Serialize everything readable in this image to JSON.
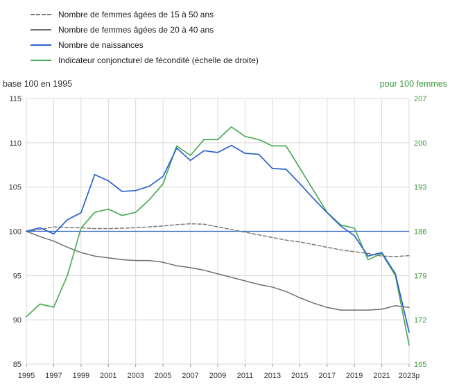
{
  "chart_data": {
    "type": "line",
    "x": [
      1995,
      1996,
      1997,
      1998,
      1999,
      2000,
      2001,
      2002,
      2003,
      2004,
      2005,
      2006,
      2007,
      2008,
      2009,
      2010,
      2011,
      2012,
      2013,
      2014,
      2015,
      2016,
      2017,
      2018,
      2019,
      2020,
      2021,
      2022,
      2023
    ],
    "x_ticks": [
      1995,
      1997,
      1999,
      2001,
      2003,
      2005,
      2007,
      2009,
      2011,
      2013,
      2015,
      2017,
      2019,
      2021,
      2023
    ],
    "x_tick_labels": [
      "1995",
      "1997",
      "1999",
      "2001",
      "2003",
      "2005",
      "2007",
      "2009",
      "2011",
      "2013",
      "2015",
      "2017",
      "2019",
      "2021",
      "2023p"
    ],
    "left_axis": {
      "title": "base 100 en 1995",
      "min": 85,
      "max": 115,
      "ticks": [
        85,
        90,
        95,
        100,
        105,
        110,
        115
      ],
      "tick_labels": [
        "85",
        "90",
        "95",
        "100",
        "105",
        "110",
        "115"
      ],
      "color": "#333333"
    },
    "right_axis": {
      "title": "pour 100 femmes",
      "min": 165,
      "max": 207,
      "ticks": [
        165,
        172,
        179,
        186,
        193,
        200,
        207
      ],
      "tick_labels": [
        "165",
        "172",
        "179",
        "186",
        "193",
        "200",
        "207"
      ],
      "color": "#3a9a3d"
    },
    "reference_line": {
      "axis": "left",
      "value": 100,
      "color": "#2c62c9"
    },
    "grid": {
      "on": true,
      "color": "#d9d9d9"
    },
    "legend_position": "top-left",
    "series": [
      {
        "name": "Nombre de femmes âgées de 15 à 50 ans",
        "axis": "left",
        "color": "#7a7a7a",
        "dash": "5,3",
        "values": [
          100,
          100.2,
          100.5,
          100.4,
          100.4,
          100.3,
          100.3,
          100.35,
          100.4,
          100.5,
          100.6,
          100.75,
          100.85,
          100.8,
          100.5,
          100.2,
          99.9,
          99.6,
          99.3,
          99.0,
          98.8,
          98.5,
          98.2,
          97.9,
          97.7,
          97.5,
          97.2,
          97.15,
          97.25
        ]
      },
      {
        "name": "Nombre de femmes âgées de 20 à 40 ans",
        "axis": "left",
        "color": "#6e6e6e",
        "dash": "",
        "values": [
          100,
          99.4,
          98.9,
          98.2,
          97.6,
          97.2,
          97.0,
          96.8,
          96.7,
          96.7,
          96.5,
          96.1,
          95.9,
          95.6,
          95.2,
          94.8,
          94.4,
          94.0,
          93.7,
          93.2,
          92.5,
          91.9,
          91.4,
          91.1,
          91.1,
          91.1,
          91.2,
          91.6,
          91.4
        ]
      },
      {
        "name": "Nombre de naissances",
        "axis": "left",
        "color": "#2c62c9",
        "dash": "",
        "values": [
          100,
          100.4,
          99.7,
          101.3,
          102.1,
          106.4,
          105.7,
          104.5,
          104.6,
          105.1,
          106.2,
          109.4,
          108.0,
          109.1,
          108.9,
          109.7,
          108.8,
          108.7,
          107.1,
          107.0,
          105.4,
          103.7,
          102.1,
          100.6,
          99.5,
          97.2,
          97.6,
          95.2,
          88.6
        ]
      },
      {
        "name": "Indicateur conjoncturel de fécondité (échelle de droite)",
        "axis": "right",
        "color": "#4daa57",
        "dash": "",
        "values": [
          172.5,
          174.5,
          174,
          179,
          186.5,
          189,
          189.5,
          188.5,
          189,
          191,
          193.5,
          199.5,
          198,
          200.5,
          200.5,
          202.5,
          201,
          200.5,
          199.5,
          199.5,
          196,
          192.5,
          189,
          187,
          186.5,
          181.5,
          182.5,
          179,
          168
        ]
      }
    ]
  }
}
